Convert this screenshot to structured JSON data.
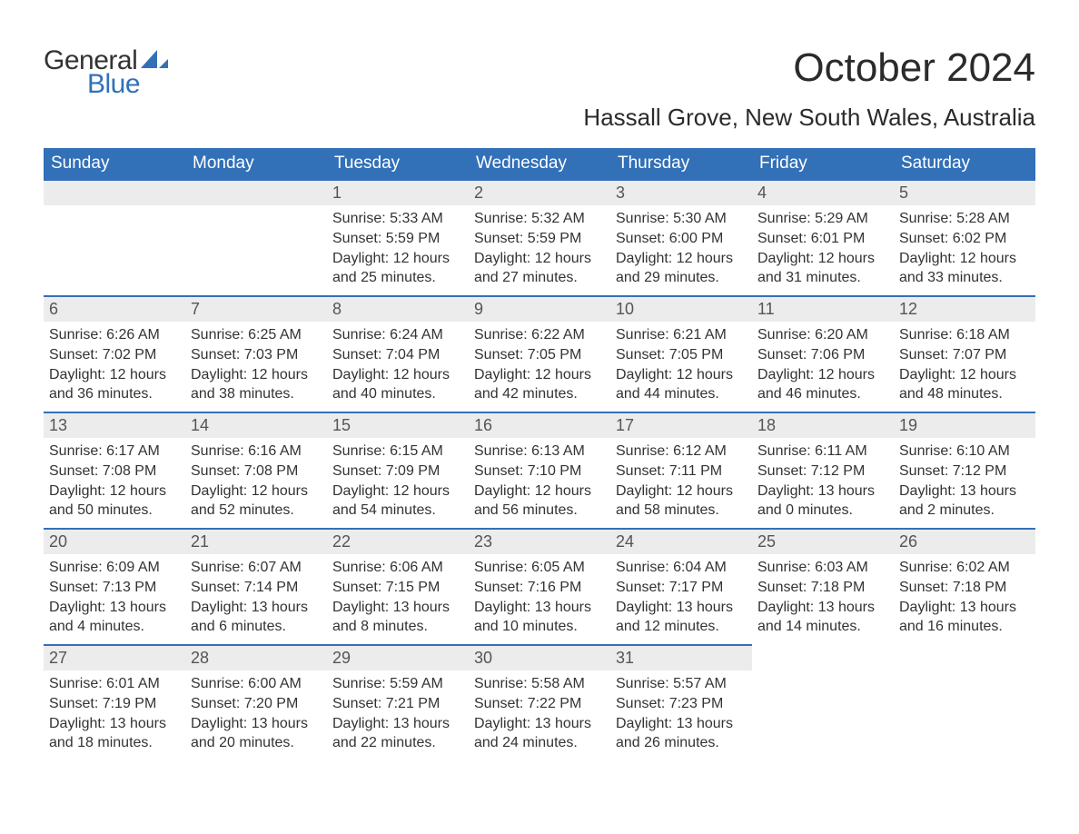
{
  "logo": {
    "word1": "General",
    "word2": "Blue",
    "shape_color": "#3270b8",
    "text1_color": "#333333",
    "text2_color": "#3270b8"
  },
  "title": "October 2024",
  "location": "Hassall Grove, New South Wales, Australia",
  "calendar": {
    "header_bg": "#3270b8",
    "header_fg": "#ffffff",
    "dayhead_bg": "#ececec",
    "dayhead_border": "#3270b8",
    "body_fg": "#333333",
    "columns": [
      "Sunday",
      "Monday",
      "Tuesday",
      "Wednesday",
      "Thursday",
      "Friday",
      "Saturday"
    ],
    "weeks": [
      [
        null,
        null,
        {
          "n": "1",
          "sunrise": "5:33 AM",
          "sunset": "5:59 PM",
          "dl1": "12 hours",
          "dl2": "and 25 minutes."
        },
        {
          "n": "2",
          "sunrise": "5:32 AM",
          "sunset": "5:59 PM",
          "dl1": "12 hours",
          "dl2": "and 27 minutes."
        },
        {
          "n": "3",
          "sunrise": "5:30 AM",
          "sunset": "6:00 PM",
          "dl1": "12 hours",
          "dl2": "and 29 minutes."
        },
        {
          "n": "4",
          "sunrise": "5:29 AM",
          "sunset": "6:01 PM",
          "dl1": "12 hours",
          "dl2": "and 31 minutes."
        },
        {
          "n": "5",
          "sunrise": "5:28 AM",
          "sunset": "6:02 PM",
          "dl1": "12 hours",
          "dl2": "and 33 minutes."
        }
      ],
      [
        {
          "n": "6",
          "sunrise": "6:26 AM",
          "sunset": "7:02 PM",
          "dl1": "12 hours",
          "dl2": "and 36 minutes."
        },
        {
          "n": "7",
          "sunrise": "6:25 AM",
          "sunset": "7:03 PM",
          "dl1": "12 hours",
          "dl2": "and 38 minutes."
        },
        {
          "n": "8",
          "sunrise": "6:24 AM",
          "sunset": "7:04 PM",
          "dl1": "12 hours",
          "dl2": "and 40 minutes."
        },
        {
          "n": "9",
          "sunrise": "6:22 AM",
          "sunset": "7:05 PM",
          "dl1": "12 hours",
          "dl2": "and 42 minutes."
        },
        {
          "n": "10",
          "sunrise": "6:21 AM",
          "sunset": "7:05 PM",
          "dl1": "12 hours",
          "dl2": "and 44 minutes."
        },
        {
          "n": "11",
          "sunrise": "6:20 AM",
          "sunset": "7:06 PM",
          "dl1": "12 hours",
          "dl2": "and 46 minutes."
        },
        {
          "n": "12",
          "sunrise": "6:18 AM",
          "sunset": "7:07 PM",
          "dl1": "12 hours",
          "dl2": "and 48 minutes."
        }
      ],
      [
        {
          "n": "13",
          "sunrise": "6:17 AM",
          "sunset": "7:08 PM",
          "dl1": "12 hours",
          "dl2": "and 50 minutes."
        },
        {
          "n": "14",
          "sunrise": "6:16 AM",
          "sunset": "7:08 PM",
          "dl1": "12 hours",
          "dl2": "and 52 minutes."
        },
        {
          "n": "15",
          "sunrise": "6:15 AM",
          "sunset": "7:09 PM",
          "dl1": "12 hours",
          "dl2": "and 54 minutes."
        },
        {
          "n": "16",
          "sunrise": "6:13 AM",
          "sunset": "7:10 PM",
          "dl1": "12 hours",
          "dl2": "and 56 minutes."
        },
        {
          "n": "17",
          "sunrise": "6:12 AM",
          "sunset": "7:11 PM",
          "dl1": "12 hours",
          "dl2": "and 58 minutes."
        },
        {
          "n": "18",
          "sunrise": "6:11 AM",
          "sunset": "7:12 PM",
          "dl1": "13 hours",
          "dl2": "and 0 minutes."
        },
        {
          "n": "19",
          "sunrise": "6:10 AM",
          "sunset": "7:12 PM",
          "dl1": "13 hours",
          "dl2": "and 2 minutes."
        }
      ],
      [
        {
          "n": "20",
          "sunrise": "6:09 AM",
          "sunset": "7:13 PM",
          "dl1": "13 hours",
          "dl2": "and 4 minutes."
        },
        {
          "n": "21",
          "sunrise": "6:07 AM",
          "sunset": "7:14 PM",
          "dl1": "13 hours",
          "dl2": "and 6 minutes."
        },
        {
          "n": "22",
          "sunrise": "6:06 AM",
          "sunset": "7:15 PM",
          "dl1": "13 hours",
          "dl2": "and 8 minutes."
        },
        {
          "n": "23",
          "sunrise": "6:05 AM",
          "sunset": "7:16 PM",
          "dl1": "13 hours",
          "dl2": "and 10 minutes."
        },
        {
          "n": "24",
          "sunrise": "6:04 AM",
          "sunset": "7:17 PM",
          "dl1": "13 hours",
          "dl2": "and 12 minutes."
        },
        {
          "n": "25",
          "sunrise": "6:03 AM",
          "sunset": "7:18 PM",
          "dl1": "13 hours",
          "dl2": "and 14 minutes."
        },
        {
          "n": "26",
          "sunrise": "6:02 AM",
          "sunset": "7:18 PM",
          "dl1": "13 hours",
          "dl2": "and 16 minutes."
        }
      ],
      [
        {
          "n": "27",
          "sunrise": "6:01 AM",
          "sunset": "7:19 PM",
          "dl1": "13 hours",
          "dl2": "and 18 minutes."
        },
        {
          "n": "28",
          "sunrise": "6:00 AM",
          "sunset": "7:20 PM",
          "dl1": "13 hours",
          "dl2": "and 20 minutes."
        },
        {
          "n": "29",
          "sunrise": "5:59 AM",
          "sunset": "7:21 PM",
          "dl1": "13 hours",
          "dl2": "and 22 minutes."
        },
        {
          "n": "30",
          "sunrise": "5:58 AM",
          "sunset": "7:22 PM",
          "dl1": "13 hours",
          "dl2": "and 24 minutes."
        },
        {
          "n": "31",
          "sunrise": "5:57 AM",
          "sunset": "7:23 PM",
          "dl1": "13 hours",
          "dl2": "and 26 minutes."
        },
        null,
        null
      ]
    ],
    "labels": {
      "sunrise": "Sunrise:",
      "sunset": "Sunset:",
      "daylight": "Daylight:"
    }
  }
}
